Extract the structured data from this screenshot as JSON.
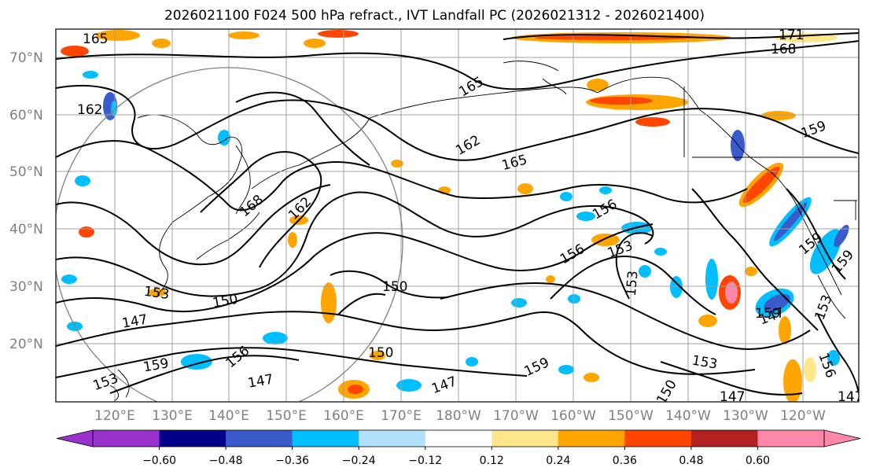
{
  "title": "2026021100 F024 500 hPa refract., IVT Landfall PC (2026021312 - 2026021400)",
  "lat_labels": [
    "70°N",
    "60°N",
    "50°N",
    "40°N",
    "30°N",
    "20°N"
  ],
  "lon_labels": [
    "120°E",
    "130°E",
    "140°E",
    "150°E",
    "160°E",
    "170°E",
    "180°W",
    "170°W",
    "160°W",
    "150°W",
    "140°W",
    "130°W",
    "120°W"
  ],
  "contour_labels": [
    "165",
    "171",
    "168",
    "165",
    "162",
    "162",
    "165",
    "159",
    "168",
    "162",
    "156",
    "156",
    "153",
    "159",
    "159",
    "153",
    "150",
    "150",
    "147",
    "153",
    "159",
    "150",
    "147",
    "147",
    "159",
    "147",
    "156",
    "153",
    "150",
    "147",
    "159",
    "153",
    "153",
    "156",
    "147"
  ],
  "colorbar": {
    "colors": [
      "#9932cc",
      "#00008b",
      "#3a5bcc",
      "#00bfff",
      "#b0e0fa",
      "#ffffff",
      "#ffe68a",
      "#ffa500",
      "#ff4500",
      "#b22222",
      "#ff88aa"
    ],
    "tick_labels": [
      "−0.60",
      "−0.48",
      "−0.36",
      "−0.24",
      "−0.12",
      "0.12",
      "0.24",
      "0.36",
      "0.48",
      "0.60"
    ]
  }
}
